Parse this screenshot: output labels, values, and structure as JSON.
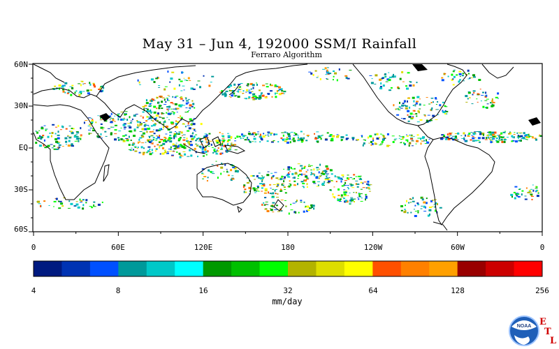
{
  "title": "May 31 – Jun 4, 192000 SSM/I Rainfall",
  "subtitle": "Ferraro Algorithm",
  "lat_labels": [
    "60N",
    "30N",
    "EQ",
    "30S",
    "60S"
  ],
  "lon_labels": [
    "0",
    "60E",
    "120E",
    "180",
    "120W",
    "60W",
    "0"
  ],
  "colorbar": {
    "colors": [
      "#001a80",
      "#0033b3",
      "#0050ff",
      "#00999a",
      "#00c8c8",
      "#00ffff",
      "#009900",
      "#00c000",
      "#00ff00",
      "#b3b300",
      "#dede00",
      "#ffff00",
      "#ff5000",
      "#ff8000",
      "#ffa000",
      "#990000",
      "#cc0000",
      "#ff0000"
    ],
    "tick_labels": [
      "4",
      "8",
      "16",
      "32",
      "64",
      "128",
      "256"
    ],
    "units": "mm/day"
  },
  "logo": {
    "center_text": "NOAA",
    "letters": [
      "E",
      "T",
      "L"
    ]
  }
}
